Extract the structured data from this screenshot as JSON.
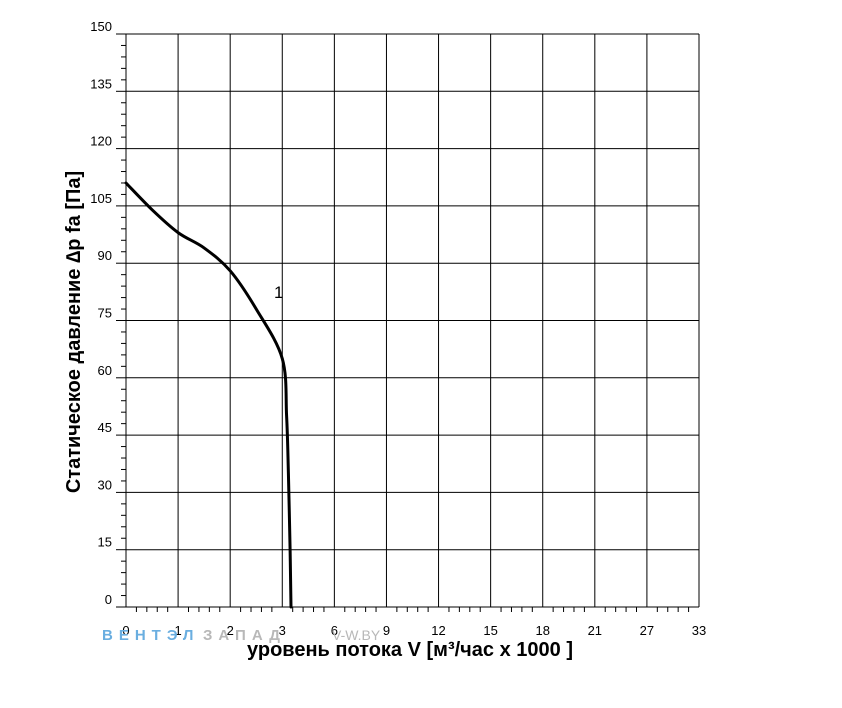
{
  "chart_data": {
    "type": "line",
    "xlabel": "уровень потока  V [м³/час x 1000 ]",
    "ylabel": "Статическое давление  ∆p fa [Па]",
    "x_ticks": [
      0,
      1,
      2,
      3,
      6,
      9,
      12,
      15,
      18,
      21,
      27,
      33
    ],
    "y_ticks": [
      0,
      15,
      30,
      45,
      60,
      75,
      90,
      105,
      120,
      135,
      150
    ],
    "ylim": [
      0,
      150
    ],
    "grid": true,
    "series": [
      {
        "name": "1",
        "points": [
          {
            "x": 0.0,
            "y": 111
          },
          {
            "x": 0.5,
            "y": 104
          },
          {
            "x": 1.0,
            "y": 98
          },
          {
            "x": 1.5,
            "y": 94
          },
          {
            "x": 2.0,
            "y": 88
          },
          {
            "x": 2.5,
            "y": 78
          },
          {
            "x": 3.0,
            "y": 65
          },
          {
            "x": 3.25,
            "y": 50
          },
          {
            "x": 3.35,
            "y": 35
          },
          {
            "x": 3.45,
            "y": 15
          },
          {
            "x": 3.5,
            "y": 0
          }
        ]
      }
    ]
  },
  "watermark": {
    "brand_left": "ВЕНТЭЛ",
    "brand_right": "ЗАПАД",
    "site": "V-W.BY",
    "color_left": "#6aaee0",
    "color_right": "#b8b8b8"
  }
}
